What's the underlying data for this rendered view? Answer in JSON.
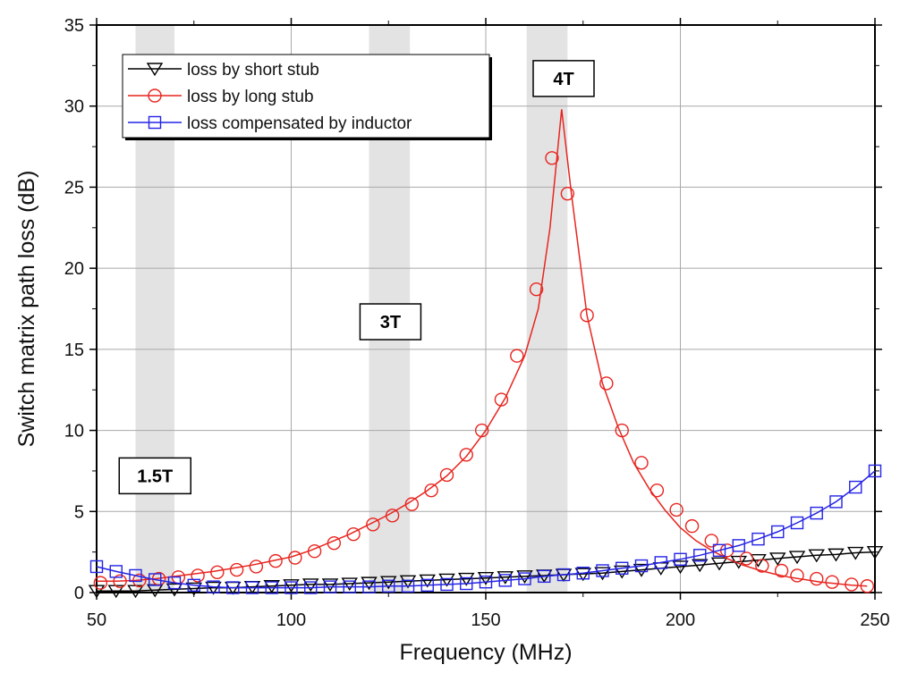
{
  "chart_data": {
    "type": "line",
    "title": "",
    "xlabel": "Frequency (MHz)",
    "ylabel": "Switch matrix path loss (dB)",
    "xlim": [
      50,
      250
    ],
    "ylim": [
      0,
      35
    ],
    "xticks": [
      50,
      100,
      150,
      200,
      250
    ],
    "yticks": [
      0,
      5,
      10,
      15,
      20,
      25,
      30,
      35
    ],
    "grid": true,
    "legend_position": "top-left",
    "shaded_bands": [
      {
        "from": 60,
        "to": 70
      },
      {
        "from": 120,
        "to": 130.5
      },
      {
        "from": 160.5,
        "to": 171
      }
    ],
    "annotations": [
      {
        "text": "1.5T",
        "x": 65,
        "y": 7.2
      },
      {
        "text": "3T",
        "x": 125.5,
        "y": 16.7
      },
      {
        "text": "4T",
        "x": 170,
        "y": 31.7
      }
    ],
    "series": [
      {
        "name": "loss by short stub",
        "color": "#000000",
        "marker": "triangle-down",
        "marker_x": [
          50,
          55,
          60,
          65,
          70,
          75,
          80,
          85,
          90,
          95,
          100,
          105,
          110,
          115,
          120,
          125,
          130,
          135,
          140,
          145,
          150,
          155,
          160,
          165,
          170,
          175,
          180,
          185,
          190,
          195,
          200,
          205,
          210,
          215,
          220,
          225,
          230,
          235,
          240,
          245,
          250
        ],
        "marker_y": [
          0.1,
          0.1,
          0.1,
          0.15,
          0.2,
          0.25,
          0.3,
          0.3,
          0.35,
          0.4,
          0.45,
          0.5,
          0.5,
          0.55,
          0.6,
          0.65,
          0.7,
          0.75,
          0.8,
          0.85,
          0.9,
          0.95,
          1.0,
          1.05,
          1.1,
          1.15,
          1.2,
          1.3,
          1.4,
          1.5,
          1.6,
          1.7,
          1.8,
          1.9,
          2.0,
          2.1,
          2.2,
          2.3,
          2.35,
          2.45,
          2.5
        ]
      },
      {
        "name": "loss by long stub",
        "color": "#e8251f",
        "marker": "circle",
        "x": [
          50,
          55,
          60,
          65,
          70,
          75,
          80,
          85,
          90,
          95,
          100,
          105,
          110,
          115,
          120,
          125,
          130,
          135,
          140,
          145,
          150,
          155,
          160,
          163.5,
          166.5,
          169.5,
          172,
          176,
          180,
          184,
          188,
          192,
          196,
          200,
          204,
          208,
          212,
          216,
          220,
          224,
          228,
          232,
          236,
          240,
          244,
          248
        ],
        "y": [
          0.7,
          0.7,
          0.75,
          0.85,
          1.0,
          1.15,
          1.3,
          1.5,
          1.7,
          1.95,
          2.2,
          2.6,
          3.1,
          3.6,
          4.2,
          4.8,
          5.5,
          6.3,
          7.2,
          8.4,
          10.0,
          12.0,
          14.6,
          17.5,
          22.5,
          29.8,
          24.6,
          17.1,
          12.9,
          10.2,
          8.0,
          6.4,
          5.1,
          4.0,
          3.2,
          2.6,
          2.1,
          1.7,
          1.4,
          1.15,
          0.95,
          0.8,
          0.65,
          0.55,
          0.45,
          0.4
        ],
        "marker_x": [
          51,
          56,
          61,
          66,
          71,
          76,
          81,
          86,
          91,
          96,
          101,
          106,
          111,
          116,
          121,
          126,
          131,
          136,
          140,
          145,
          149,
          154,
          158,
          163,
          167,
          171,
          176,
          181,
          185,
          190,
          194,
          199,
          203,
          208,
          212,
          217,
          221,
          226,
          230,
          235,
          239,
          244,
          248
        ],
        "marker_y": [
          0.6,
          0.7,
          0.75,
          0.85,
          0.95,
          1.05,
          1.25,
          1.4,
          1.6,
          1.95,
          2.15,
          2.55,
          3.05,
          3.6,
          4.2,
          4.75,
          5.45,
          6.3,
          7.25,
          8.5,
          10.0,
          11.9,
          14.6,
          18.7,
          26.8,
          24.6,
          17.1,
          12.9,
          10.0,
          8.0,
          6.3,
          5.1,
          4.1,
          3.2,
          2.6,
          2.1,
          1.65,
          1.35,
          1.05,
          0.85,
          0.65,
          0.5,
          0.4
        ]
      },
      {
        "name": "loss compensated by inductor",
        "color": "#2424e6",
        "marker": "square",
        "marker_x": [
          50,
          55,
          60,
          65,
          70,
          75,
          80,
          85,
          90,
          95,
          100,
          105,
          110,
          115,
          120,
          125,
          130,
          135,
          140,
          145,
          150,
          155,
          160,
          165,
          170,
          175,
          180,
          185,
          190,
          195,
          200,
          205,
          210,
          215,
          220,
          225,
          230,
          235,
          240,
          245,
          250
        ],
        "marker_y": [
          1.6,
          1.3,
          1.05,
          0.8,
          0.6,
          0.45,
          0.35,
          0.3,
          0.3,
          0.3,
          0.3,
          0.3,
          0.35,
          0.35,
          0.35,
          0.4,
          0.4,
          0.45,
          0.5,
          0.55,
          0.65,
          0.75,
          0.85,
          1.0,
          1.1,
          1.2,
          1.35,
          1.5,
          1.65,
          1.85,
          2.05,
          2.3,
          2.6,
          2.9,
          3.3,
          3.75,
          4.3,
          4.9,
          5.6,
          6.5,
          7.5
        ]
      }
    ]
  }
}
